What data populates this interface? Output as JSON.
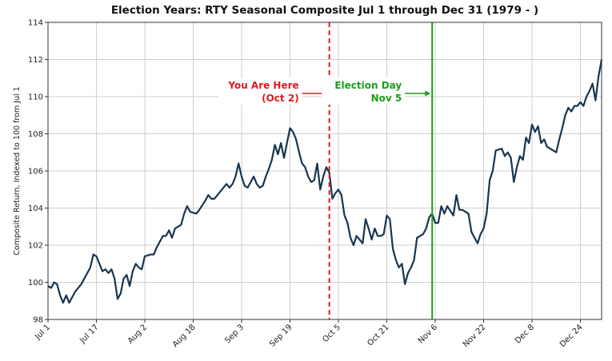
{
  "chart_data": {
    "type": "line",
    "title": "Election Years: RTY Seasonal Composite Jul 1 through Dec 31 (1979 - )",
    "ylabel": "Composite Return, Indexed to 100 from Jul 1",
    "color": "#1a3550",
    "grid": true,
    "xlim": [
      0,
      183
    ],
    "ylim": [
      98,
      114
    ],
    "yticks": [
      98,
      100,
      102,
      104,
      106,
      108,
      110,
      112,
      114
    ],
    "xticks": [
      {
        "value": 0,
        "label": "Jul 1"
      },
      {
        "value": 16,
        "label": "Jul 17"
      },
      {
        "value": 32,
        "label": "Aug 2"
      },
      {
        "value": 48,
        "label": "Aug 18"
      },
      {
        "value": 64,
        "label": "Sep 3"
      },
      {
        "value": 80,
        "label": "Sep 19"
      },
      {
        "value": 96,
        "label": "Oct 5"
      },
      {
        "value": 112,
        "label": "Oct 21"
      },
      {
        "value": 128,
        "label": "Nov 6"
      },
      {
        "value": 144,
        "label": "Nov 22"
      },
      {
        "value": 160,
        "label": "Dec 8"
      },
      {
        "value": 176,
        "label": "Dec 24"
      }
    ],
    "x": [
      0,
      1,
      2,
      3,
      4,
      5,
      6,
      7,
      9,
      11,
      12,
      14,
      15,
      16,
      18,
      19,
      20,
      21,
      22,
      23,
      24,
      25,
      26,
      27,
      28,
      29,
      30,
      31,
      32,
      34,
      35,
      36,
      38,
      39,
      40,
      41,
      42,
      44,
      45,
      46,
      47,
      49,
      50,
      52,
      53,
      54,
      55,
      57,
      59,
      60,
      61,
      62,
      63,
      64,
      65,
      66,
      67,
      68,
      69,
      70,
      71,
      72,
      73,
      74,
      75,
      76,
      77,
      78,
      79,
      80,
      81,
      82,
      83,
      84,
      85,
      86,
      87,
      88,
      89,
      90,
      91,
      92,
      93,
      94,
      95,
      96,
      97,
      98,
      99,
      100,
      101,
      102,
      103,
      104,
      105,
      106,
      107,
      108,
      109,
      110,
      111,
      112,
      113,
      114,
      115,
      116,
      117,
      118,
      119,
      120,
      121,
      122,
      123,
      124,
      125,
      126,
      127,
      128,
      129,
      130,
      131,
      132,
      134,
      135,
      136,
      137,
      138,
      139,
      140,
      142,
      143,
      144,
      145,
      146,
      147,
      148,
      150,
      151,
      152,
      153,
      154,
      155,
      156,
      157,
      158,
      159,
      160,
      161,
      162,
      163,
      164,
      165,
      167,
      168,
      169,
      170,
      171,
      172,
      173,
      174,
      175,
      176,
      177,
      178,
      179,
      180,
      181,
      182,
      183
    ],
    "values": [
      99.8,
      99.7,
      100.0,
      99.9,
      99.3,
      98.9,
      99.3,
      98.9,
      99.5,
      99.9,
      100.2,
      100.8,
      101.5,
      101.4,
      100.6,
      100.7,
      100.5,
      100.7,
      100.2,
      99.1,
      99.4,
      100.2,
      100.4,
      99.8,
      100.6,
      101.0,
      100.8,
      100.7,
      101.4,
      101.5,
      101.5,
      101.9,
      102.5,
      102.5,
      102.8,
      102.4,
      102.9,
      103.1,
      103.7,
      104.1,
      103.8,
      103.7,
      103.9,
      104.4,
      104.7,
      104.5,
      104.5,
      104.9,
      105.3,
      105.1,
      105.3,
      105.7,
      106.4,
      105.7,
      105.2,
      105.1,
      105.4,
      105.7,
      105.3,
      105.1,
      105.2,
      105.7,
      106.1,
      106.6,
      107.4,
      106.9,
      107.5,
      106.7,
      107.5,
      108.3,
      108.1,
      107.7,
      107.0,
      106.4,
      106.2,
      105.7,
      105.4,
      105.5,
      106.4,
      105.0,
      105.7,
      106.2,
      105.9,
      104.5,
      104.8,
      105.0,
      104.7,
      103.6,
      103.2,
      102.4,
      102.0,
      102.5,
      102.3,
      102.1,
      103.4,
      102.9,
      102.3,
      102.9,
      102.5,
      102.5,
      102.6,
      103.6,
      103.4,
      101.8,
      101.2,
      100.8,
      101.0,
      99.9,
      100.5,
      100.8,
      101.2,
      102.4,
      102.5,
      102.6,
      102.9,
      103.5,
      103.7,
      103.2,
      103.2,
      104.1,
      103.7,
      104.1,
      103.6,
      104.7,
      103.9,
      103.9,
      103.8,
      103.7,
      102.7,
      102.1,
      102.6,
      102.9,
      103.7,
      105.5,
      106.0,
      107.1,
      107.2,
      106.8,
      107.0,
      106.7,
      105.4,
      106.2,
      106.8,
      106.6,
      107.8,
      107.5,
      108.5,
      108.1,
      108.4,
      107.5,
      107.7,
      107.3,
      107.1,
      107.0,
      107.7,
      108.3,
      109.0,
      109.4,
      109.2,
      109.5,
      109.5,
      109.7,
      109.5,
      110.0,
      110.3,
      110.7,
      109.8,
      111.1,
      112.0
    ],
    "vlines": [
      {
        "x": 93,
        "color": "#e31a1c",
        "dashed": true,
        "label": [
          "You Are Here",
          "(Oct 2)"
        ]
      },
      {
        "x": 127,
        "color": "#1a9e1a",
        "dashed": false,
        "label": [
          "Election Day",
          "Nov 5"
        ]
      }
    ]
  }
}
